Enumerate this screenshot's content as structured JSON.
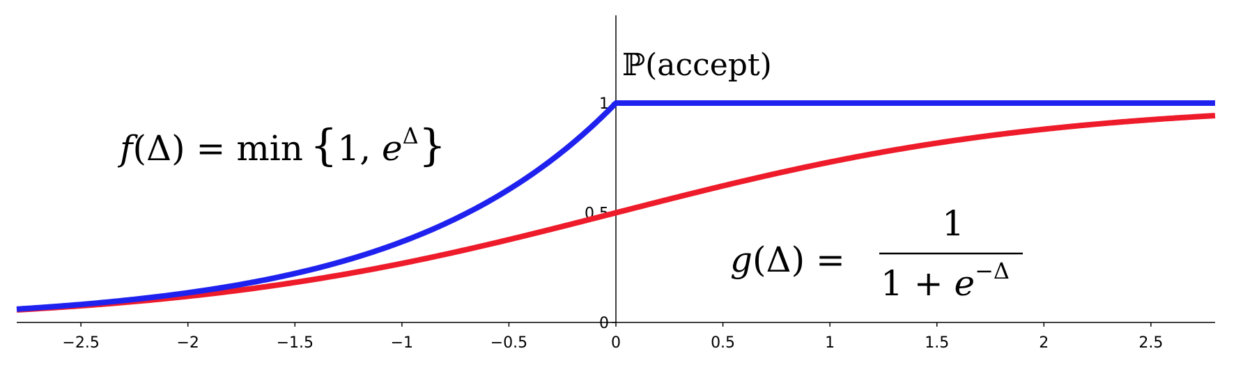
{
  "chart_data": {
    "type": "line",
    "title": "",
    "ylabel": "ℙ(accept)",
    "xlabel": "",
    "xlim": [
      -2.8,
      2.8
    ],
    "ylim": [
      0,
      1.4
    ],
    "grid": false,
    "x_ticks": [
      -2.5,
      -2,
      -1.5,
      -1,
      -0.5,
      0,
      0.5,
      1,
      1.5,
      2,
      2.5
    ],
    "x_tick_labels": [
      "−2.5",
      "−2",
      "−1.5",
      "−1",
      "−0.5",
      "0",
      "0.5",
      "1",
      "1.5",
      "2",
      "2.5"
    ],
    "y_ticks": [
      0,
      0.5,
      1
    ],
    "y_tick_labels": [
      "0",
      "0.5",
      "1"
    ],
    "series": [
      {
        "formula": "min(1, e^x)",
        "color": "#1f22ee",
        "x": [
          -2.8,
          -2.5,
          -2.0,
          -1.5,
          -1.0,
          -0.75,
          -0.5,
          -0.25,
          0,
          0.5,
          1.0,
          1.5,
          2.0,
          2.5,
          2.8
        ],
        "y": [
          0.061,
          0.082,
          0.135,
          0.223,
          0.368,
          0.472,
          0.607,
          0.779,
          1.0,
          1.0,
          1.0,
          1.0,
          1.0,
          1.0,
          1.0
        ]
      },
      {
        "formula": "1/(1+e^-x)",
        "color": "#ee1b2a",
        "x": [
          -2.8,
          -2.5,
          -2.0,
          -1.5,
          -1.0,
          -0.5,
          0,
          0.5,
          1.0,
          1.5,
          2.0,
          2.5,
          2.8
        ],
        "y": [
          0.057,
          0.076,
          0.119,
          0.182,
          0.269,
          0.378,
          0.5,
          0.622,
          0.731,
          0.818,
          0.881,
          0.924,
          0.943
        ]
      }
    ],
    "annotations": {
      "f_name": "f",
      "f_open": "(Δ) = min",
      "f_brace_open": "{",
      "f_args": "1, ",
      "f_exp_base": "e",
      "f_exp": "Δ",
      "f_brace_close": "}",
      "g_name": "g",
      "g_lhs": "(Δ) =",
      "g_numerator": "1",
      "g_den_main": "1 + ",
      "g_den_exp_base": "e",
      "g_den_exp": "−Δ"
    }
  }
}
